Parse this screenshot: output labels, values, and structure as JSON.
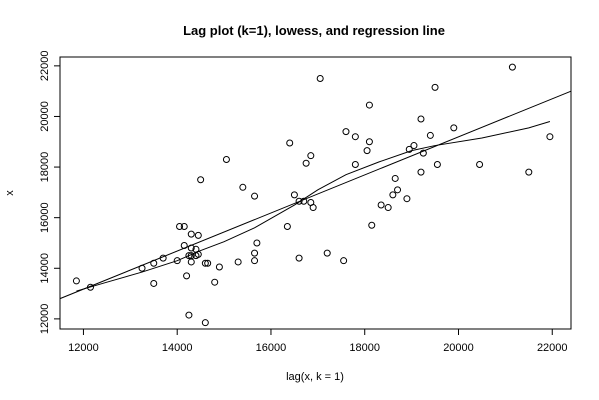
{
  "chart_data": {
    "type": "scatter",
    "title": "Lag plot (k=1), lowess, and regression line",
    "xlabel": "lag(x, k = 1)",
    "ylabel": "x",
    "xlim": [
      11500,
      22400
    ],
    "ylim": [
      11600,
      22350
    ],
    "xticks": [
      12000,
      14000,
      16000,
      18000,
      20000,
      22000
    ],
    "yticks": [
      12000,
      14000,
      16000,
      18000,
      20000,
      22000
    ],
    "points": [
      [
        11850,
        13500
      ],
      [
        12150,
        13250
      ],
      [
        13250,
        14000
      ],
      [
        13500,
        13400
      ],
      [
        13500,
        14200
      ],
      [
        13700,
        14400
      ],
      [
        14000,
        14300
      ],
      [
        14050,
        15650
      ],
      [
        14150,
        14900
      ],
      [
        14150,
        15650
      ],
      [
        14200,
        13700
      ],
      [
        14250,
        12150
      ],
      [
        14250,
        14500
      ],
      [
        14300,
        14250
      ],
      [
        14300,
        14500
      ],
      [
        14300,
        14800
      ],
      [
        14300,
        15350
      ],
      [
        14400,
        14500
      ],
      [
        14400,
        14750
      ],
      [
        14450,
        15300
      ],
      [
        14450,
        14550
      ],
      [
        14500,
        17500
      ],
      [
        14600,
        14200
      ],
      [
        14600,
        11850
      ],
      [
        14650,
        14200
      ],
      [
        14800,
        13450
      ],
      [
        14900,
        14050
      ],
      [
        15050,
        18300
      ],
      [
        15300,
        14250
      ],
      [
        15400,
        17200
      ],
      [
        15650,
        14300
      ],
      [
        15650,
        14600
      ],
      [
        15650,
        16850
      ],
      [
        15700,
        15000
      ],
      [
        16350,
        15650
      ],
      [
        16400,
        18950
      ],
      [
        16500,
        16900
      ],
      [
        16600,
        14400
      ],
      [
        16600,
        16650
      ],
      [
        16700,
        16650
      ],
      [
        16750,
        18150
      ],
      [
        16850,
        18450
      ],
      [
        16850,
        16600
      ],
      [
        16900,
        16400
      ],
      [
        17050,
        21500
      ],
      [
        17200,
        14600
      ],
      [
        17550,
        14300
      ],
      [
        17600,
        19400
      ],
      [
        17800,
        18100
      ],
      [
        17800,
        19200
      ],
      [
        18050,
        18650
      ],
      [
        18100,
        20450
      ],
      [
        18100,
        19000
      ],
      [
        18150,
        15700
      ],
      [
        18350,
        16500
      ],
      [
        18500,
        16400
      ],
      [
        18600,
        16900
      ],
      [
        18650,
        17550
      ],
      [
        18700,
        17100
      ],
      [
        18900,
        16750
      ],
      [
        18950,
        18700
      ],
      [
        19050,
        18850
      ],
      [
        19200,
        17800
      ],
      [
        19200,
        19900
      ],
      [
        19250,
        18550
      ],
      [
        19400,
        19250
      ],
      [
        19500,
        21150
      ],
      [
        19550,
        18100
      ],
      [
        19900,
        19550
      ],
      [
        20450,
        18100
      ],
      [
        21150,
        21950
      ],
      [
        21500,
        17800
      ],
      [
        21950,
        19200
      ]
    ],
    "regression_line": {
      "x": [
        11500,
        22400
      ],
      "y": [
        12800,
        21000
      ]
    },
    "lowess": {
      "x": [
        11850,
        12500,
        13250,
        14000,
        14500,
        15000,
        15650,
        16500,
        17000,
        17600,
        18300,
        19000,
        19500,
        20500,
        21500,
        21950
      ],
      "y": [
        13100,
        13450,
        13850,
        14300,
        14700,
        15050,
        15600,
        16500,
        17100,
        17700,
        18200,
        18650,
        18850,
        19150,
        19550,
        19800
      ]
    },
    "grid": false,
    "legend": "none"
  }
}
